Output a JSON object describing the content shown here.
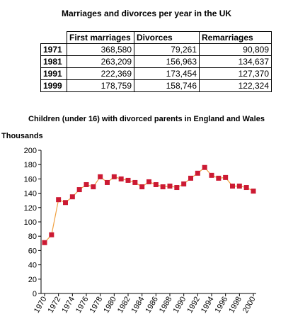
{
  "table": {
    "title": "Marriages and divorces per year in the UK",
    "columns": [
      "First marriages",
      "Divorces",
      "Remarriages"
    ],
    "rows": [
      {
        "year": "1971",
        "first": "368,580",
        "div": "79,261",
        "remar": "90,809"
      },
      {
        "year": "1981",
        "first": "263,209",
        "div": "156,963",
        "remar": "134,637"
      },
      {
        "year": "1991",
        "first": "222,369",
        "div": "173,454",
        "remar": "127,370"
      },
      {
        "year": "1999",
        "first": "178,759",
        "div": "158,746",
        "remar": "122,324"
      }
    ]
  },
  "chart_data": {
    "type": "line",
    "title": "Children (under 16) with divorced parents in England and Wales",
    "ylabel": "Thousands",
    "xlabel": "",
    "x": [
      1970,
      1971,
      1972,
      1973,
      1974,
      1975,
      1976,
      1977,
      1978,
      1979,
      1980,
      1981,
      1982,
      1983,
      1984,
      1985,
      1986,
      1987,
      1988,
      1989,
      1990,
      1991,
      1992,
      1993,
      1994,
      1995,
      1996,
      1997,
      1998,
      1999,
      2000
    ],
    "y": [
      71,
      82,
      131,
      127,
      135,
      145,
      152,
      149,
      163,
      155,
      163,
      160,
      158,
      155,
      149,
      156,
      152,
      149,
      150,
      148,
      153,
      161,
      168,
      176,
      165,
      161,
      162,
      150,
      150,
      148,
      143
    ],
    "xticks": [
      "1970",
      "1972",
      "1974",
      "1976",
      "1978",
      "1980",
      "1982",
      "1984",
      "1986",
      "1988",
      "1990",
      "1992",
      "1994",
      "1996",
      "1998",
      "2000"
    ],
    "yticks": [
      "0",
      "20",
      "40",
      "60",
      "80",
      "100",
      "120",
      "140",
      "160",
      "180",
      "200"
    ],
    "ylim": [
      0,
      200
    ],
    "xlim": [
      1970,
      2000
    ],
    "grid": false,
    "line_color": "#f0a040",
    "marker_color": "#cc1a33"
  }
}
